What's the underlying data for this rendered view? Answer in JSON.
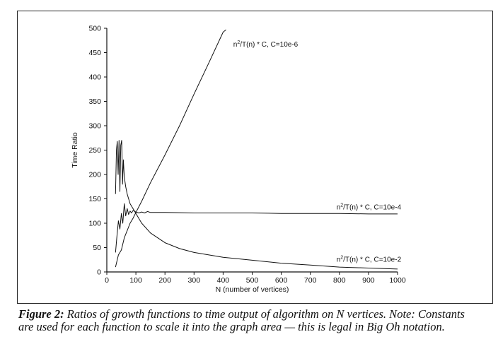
{
  "caption": {
    "label": "Figure 2:",
    "text": "Ratios of growth functions to time output of algorithm on N vertices. Note: Constants are used for each function to scale it into the graph area — this is legal in Big Oh notation."
  },
  "chart_data": {
    "type": "line",
    "xlabel": "N (number of vertices)",
    "ylabel": "Time Ratio",
    "xlim": [
      0,
      1000
    ],
    "ylim": [
      0,
      500
    ],
    "xticks": [
      0,
      100,
      200,
      300,
      400,
      500,
      600,
      700,
      800,
      900,
      1000
    ],
    "yticks": [
      0,
      50,
      100,
      150,
      200,
      250,
      300,
      350,
      400,
      450,
      500
    ],
    "grid": false,
    "legend": "inline labels",
    "series": [
      {
        "name": "n²/T(n) * C, C=10e-6",
        "label_prefix": "n",
        "label_sup": "2",
        "label_suffix": "/T(n) * C, C=10e-6",
        "label_anchor": [
          435,
          462
        ],
        "x": [
          30,
          40,
          50,
          60,
          70,
          80,
          90,
          100,
          120,
          150,
          200,
          250,
          300,
          350,
          400,
          410
        ],
        "y": [
          10,
          35,
          45,
          70,
          85,
          100,
          110,
          122,
          145,
          183,
          240,
          300,
          365,
          428,
          492,
          497
        ]
      },
      {
        "name": "n²/T(n) * C, C=10e-4",
        "label_prefix": "n",
        "label_sup": "2",
        "label_suffix": "/T(n) * C, C=10e-4",
        "label_anchor": [
          790,
          128
        ],
        "x": [
          30,
          35,
          40,
          45,
          50,
          55,
          60,
          65,
          70,
          75,
          80,
          85,
          90,
          100,
          110,
          120,
          130,
          140,
          150,
          200,
          300,
          400,
          500,
          600,
          700,
          800,
          900,
          1000
        ],
        "y": [
          40,
          75,
          105,
          88,
          120,
          100,
          140,
          115,
          130,
          118,
          125,
          121,
          126,
          123,
          121,
          123,
          121,
          124,
          122,
          122,
          121,
          121,
          121,
          120,
          120,
          120,
          119,
          119
        ]
      },
      {
        "name": "n²/T(n) * C, C=10e-2",
        "label_prefix": "n",
        "label_sup": "2",
        "label_suffix": "/T(n) * C, C=10e-2",
        "label_anchor": [
          790,
          21
        ],
        "x": [
          30,
          33,
          36,
          39,
          42,
          45,
          48,
          51,
          54,
          57,
          60,
          65,
          70,
          80,
          90,
          100,
          120,
          150,
          200,
          250,
          300,
          400,
          500,
          600,
          700,
          800,
          900,
          1000
        ],
        "y": [
          160,
          250,
          268,
          200,
          270,
          165,
          260,
          270,
          180,
          230,
          195,
          175,
          160,
          140,
          130,
          120,
          100,
          80,
          60,
          48,
          40,
          30,
          24,
          18,
          14,
          10,
          8,
          6
        ]
      }
    ]
  }
}
